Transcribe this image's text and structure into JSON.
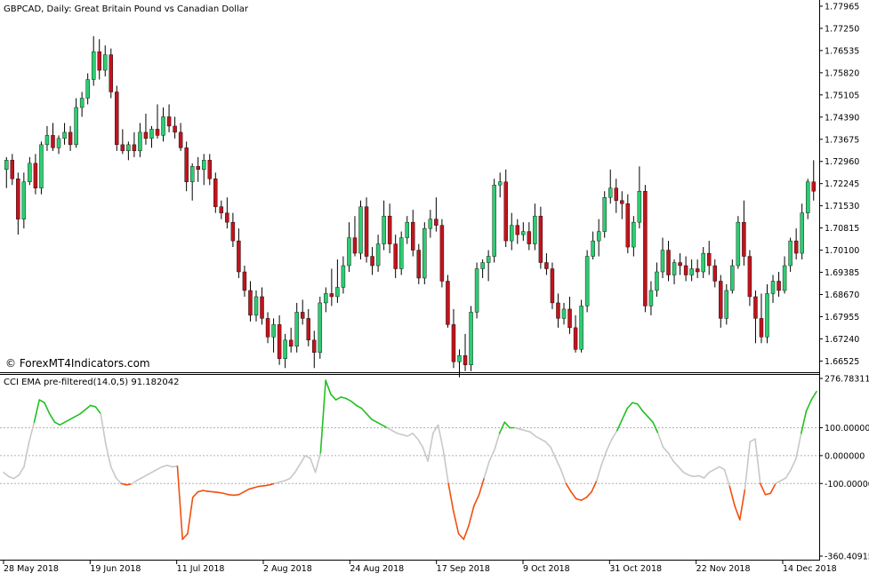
{
  "chart_title": "GBPCAD, Daily:  Great Britain Pound vs Canadian Dollar",
  "watermark": "© ForexMT4Indicators.com",
  "colors": {
    "bull": "#2ecc71",
    "bear": "#c0141c",
    "wick": "#000000",
    "cci_up": "#22c022",
    "cci_down": "#f05010",
    "cci_neutral": "#c8c8c8",
    "grid": "#b0b0b0"
  },
  "price_axis": {
    "ticks": [
      "1.77965",
      "1.77250",
      "1.76535",
      "1.75820",
      "1.75105",
      "1.74390",
      "1.73675",
      "1.72960",
      "1.72245",
      "1.71530",
      "1.70815",
      "1.70100",
      "1.69385",
      "1.68670",
      "1.67955",
      "1.67240",
      "1.66525"
    ]
  },
  "date_axis": {
    "labels": [
      "28 May 2018",
      "19 Jun 2018",
      "11 Jul 2018",
      "2 Aug 2018",
      "24 Aug 2018",
      "17 Sep 2018",
      "9 Oct 2018",
      "31 Oct 2018",
      "22 Nov 2018",
      "14 Dec 2018"
    ]
  },
  "indicator": {
    "label": "CCI EMA pre-filtered(14.0,5) 91.182042",
    "ticks": [
      "276.783113",
      "100.000000",
      "0.000000",
      "-100.000000",
      "-360.409151"
    ]
  },
  "chart_data": [
    {
      "type": "candlestick",
      "title": "GBPCAD, Daily:  Great Britain Pound vs Canadian Dollar",
      "ylim": [
        1.6625,
        1.7805
      ],
      "x_labels": [
        "28 May 2018",
        "19 Jun 2018",
        "11 Jul 2018",
        "2 Aug 2018",
        "24 Aug 2018",
        "17 Sep 2018",
        "9 Oct 2018",
        "31 Oct 2018",
        "22 Nov 2018",
        "14 Dec 2018"
      ],
      "ohlc": [
        [
          1.727,
          1.731,
          1.721,
          1.73
        ],
        [
          1.73,
          1.732,
          1.722,
          1.724
        ],
        [
          1.724,
          1.726,
          1.706,
          1.711
        ],
        [
          1.711,
          1.726,
          1.708,
          1.723
        ],
        [
          1.723,
          1.731,
          1.722,
          1.729
        ],
        [
          1.729,
          1.732,
          1.719,
          1.721
        ],
        [
          1.721,
          1.736,
          1.719,
          1.735
        ],
        [
          1.735,
          1.741,
          1.733,
          1.738
        ],
        [
          1.738,
          1.742,
          1.733,
          1.734
        ],
        [
          1.734,
          1.738,
          1.732,
          1.737
        ],
        [
          1.737,
          1.742,
          1.735,
          1.739
        ],
        [
          1.739,
          1.741,
          1.733,
          1.735
        ],
        [
          1.735,
          1.75,
          1.734,
          1.747
        ],
        [
          1.747,
          1.752,
          1.744,
          1.75
        ],
        [
          1.75,
          1.758,
          1.748,
          1.756
        ],
        [
          1.756,
          1.77,
          1.754,
          1.765
        ],
        [
          1.765,
          1.769,
          1.756,
          1.759
        ],
        [
          1.759,
          1.767,
          1.757,
          1.764
        ],
        [
          1.764,
          1.766,
          1.75,
          1.752
        ],
        [
          1.752,
          1.754,
          1.733,
          1.735
        ],
        [
          1.735,
          1.74,
          1.732,
          1.733
        ],
        [
          1.733,
          1.736,
          1.73,
          1.735
        ],
        [
          1.735,
          1.739,
          1.731,
          1.733
        ],
        [
          1.733,
          1.742,
          1.731,
          1.739
        ],
        [
          1.739,
          1.745,
          1.735,
          1.737
        ],
        [
          1.737,
          1.741,
          1.734,
          1.74
        ],
        [
          1.74,
          1.748,
          1.737,
          1.738
        ],
        [
          1.738,
          1.747,
          1.736,
          1.744
        ],
        [
          1.744,
          1.748,
          1.739,
          1.741
        ],
        [
          1.741,
          1.744,
          1.737,
          1.739
        ],
        [
          1.739,
          1.742,
          1.733,
          1.734
        ],
        [
          1.734,
          1.736,
          1.72,
          1.723
        ],
        [
          1.723,
          1.729,
          1.717,
          1.728
        ],
        [
          1.728,
          1.731,
          1.723,
          1.727
        ],
        [
          1.727,
          1.732,
          1.722,
          1.73
        ],
        [
          1.73,
          1.732,
          1.722,
          1.724
        ],
        [
          1.724,
          1.726,
          1.713,
          1.715
        ],
        [
          1.715,
          1.717,
          1.711,
          1.713
        ],
        [
          1.713,
          1.718,
          1.708,
          1.71
        ],
        [
          1.71,
          1.713,
          1.702,
          1.704
        ],
        [
          1.704,
          1.708,
          1.692,
          1.694
        ],
        [
          1.694,
          1.696,
          1.686,
          1.688
        ],
        [
          1.688,
          1.691,
          1.678,
          1.68
        ],
        [
          1.68,
          1.688,
          1.678,
          1.686
        ],
        [
          1.686,
          1.689,
          1.677,
          1.679
        ],
        [
          1.679,
          1.681,
          1.671,
          1.673
        ],
        [
          1.673,
          1.679,
          1.668,
          1.677
        ],
        [
          1.677,
          1.68,
          1.664,
          1.666
        ],
        [
          1.666,
          1.674,
          1.663,
          1.672
        ],
        [
          1.672,
          1.676,
          1.668,
          1.67
        ],
        [
          1.67,
          1.684,
          1.668,
          1.681
        ],
        [
          1.681,
          1.685,
          1.677,
          1.679
        ],
        [
          1.679,
          1.682,
          1.67,
          1.672
        ],
        [
          1.672,
          1.675,
          1.663,
          1.668
        ],
        [
          1.668,
          1.686,
          1.666,
          1.684
        ],
        [
          1.684,
          1.689,
          1.681,
          1.687
        ],
        [
          1.687,
          1.695,
          1.683,
          1.686
        ],
        [
          1.686,
          1.698,
          1.684,
          1.689
        ],
        [
          1.689,
          1.699,
          1.687,
          1.696
        ],
        [
          1.696,
          1.71,
          1.694,
          1.705
        ],
        [
          1.705,
          1.712,
          1.699,
          1.7
        ],
        [
          1.7,
          1.717,
          1.698,
          1.715
        ],
        [
          1.715,
          1.718,
          1.697,
          1.699
        ],
        [
          1.699,
          1.702,
          1.693,
          1.696
        ],
        [
          1.696,
          1.706,
          1.694,
          1.703
        ],
        [
          1.703,
          1.717,
          1.701,
          1.712
        ],
        [
          1.712,
          1.716,
          1.7,
          1.703
        ],
        [
          1.703,
          1.706,
          1.692,
          1.695
        ],
        [
          1.695,
          1.707,
          1.693,
          1.705
        ],
        [
          1.705,
          1.712,
          1.703,
          1.71
        ],
        [
          1.71,
          1.714,
          1.699,
          1.701
        ],
        [
          1.701,
          1.703,
          1.69,
          1.692
        ],
        [
          1.692,
          1.71,
          1.69,
          1.708
        ],
        [
          1.708,
          1.714,
          1.705,
          1.711
        ],
        [
          1.711,
          1.718,
          1.707,
          1.709
        ],
        [
          1.709,
          1.711,
          1.689,
          1.691
        ],
        [
          1.691,
          1.693,
          1.676,
          1.677
        ],
        [
          1.677,
          1.682,
          1.663,
          1.665
        ],
        [
          1.665,
          1.669,
          1.66,
          1.667
        ],
        [
          1.667,
          1.674,
          1.662,
          1.664
        ],
        [
          1.664,
          1.683,
          1.662,
          1.681
        ],
        [
          1.681,
          1.697,
          1.679,
          1.695
        ],
        [
          1.695,
          1.698,
          1.692,
          1.697
        ],
        [
          1.697,
          1.701,
          1.691,
          1.699
        ],
        [
          1.699,
          1.724,
          1.697,
          1.722
        ],
        [
          1.722,
          1.726,
          1.718,
          1.723
        ],
        [
          1.723,
          1.727,
          1.702,
          1.704
        ],
        [
          1.704,
          1.713,
          1.701,
          1.709
        ],
        [
          1.709,
          1.711,
          1.703,
          1.706
        ],
        [
          1.706,
          1.71,
          1.704,
          1.707
        ],
        [
          1.707,
          1.71,
          1.701,
          1.703
        ],
        [
          1.703,
          1.716,
          1.701,
          1.712
        ],
        [
          1.712,
          1.715,
          1.695,
          1.697
        ],
        [
          1.697,
          1.7,
          1.693,
          1.695
        ],
        [
          1.695,
          1.697,
          1.682,
          1.684
        ],
        [
          1.684,
          1.687,
          1.676,
          1.679
        ],
        [
          1.679,
          1.684,
          1.677,
          1.682
        ],
        [
          1.682,
          1.686,
          1.674,
          1.676
        ],
        [
          1.676,
          1.68,
          1.668,
          1.669
        ],
        [
          1.669,
          1.685,
          1.668,
          1.683
        ],
        [
          1.683,
          1.701,
          1.681,
          1.699
        ],
        [
          1.699,
          1.707,
          1.698,
          1.704
        ],
        [
          1.704,
          1.711,
          1.699,
          1.707
        ],
        [
          1.707,
          1.72,
          1.705,
          1.718
        ],
        [
          1.718,
          1.727,
          1.716,
          1.721
        ],
        [
          1.721,
          1.724,
          1.713,
          1.717
        ],
        [
          1.717,
          1.72,
          1.711,
          1.716
        ],
        [
          1.716,
          1.719,
          1.7,
          1.702
        ],
        [
          1.702,
          1.712,
          1.699,
          1.71
        ],
        [
          1.71,
          1.728,
          1.708,
          1.72
        ],
        [
          1.72,
          1.722,
          1.681,
          1.683
        ],
        [
          1.683,
          1.691,
          1.68,
          1.688
        ],
        [
          1.688,
          1.697,
          1.686,
          1.694
        ],
        [
          1.694,
          1.705,
          1.692,
          1.701
        ],
        [
          1.701,
          1.704,
          1.691,
          1.693
        ],
        [
          1.693,
          1.698,
          1.69,
          1.697
        ],
        [
          1.697,
          1.7,
          1.693,
          1.696
        ],
        [
          1.696,
          1.699,
          1.691,
          1.693
        ],
        [
          1.693,
          1.698,
          1.691,
          1.695
        ],
        [
          1.695,
          1.698,
          1.692,
          1.694
        ],
        [
          1.694,
          1.702,
          1.692,
          1.7
        ],
        [
          1.7,
          1.704,
          1.693,
          1.696
        ],
        [
          1.696,
          1.698,
          1.689,
          1.691
        ],
        [
          1.691,
          1.693,
          1.676,
          1.679
        ],
        [
          1.679,
          1.69,
          1.677,
          1.688
        ],
        [
          1.688,
          1.698,
          1.687,
          1.696
        ],
        [
          1.696,
          1.712,
          1.695,
          1.71
        ],
        [
          1.71,
          1.717,
          1.696,
          1.699
        ],
        [
          1.699,
          1.701,
          1.683,
          1.686
        ],
        [
          1.686,
          1.688,
          1.671,
          1.679
        ],
        [
          1.679,
          1.687,
          1.671,
          1.673
        ],
        [
          1.673,
          1.69,
          1.671,
          1.687
        ],
        [
          1.687,
          1.693,
          1.684,
          1.691
        ],
        [
          1.691,
          1.694,
          1.686,
          1.688
        ],
        [
          1.688,
          1.699,
          1.687,
          1.696
        ],
        [
          1.696,
          1.705,
          1.694,
          1.704
        ],
        [
          1.704,
          1.708,
          1.698,
          1.7
        ],
        [
          1.7,
          1.716,
          1.698,
          1.713
        ],
        [
          1.713,
          1.724,
          1.711,
          1.723
        ],
        [
          1.723,
          1.73,
          1.717,
          1.72
        ]
      ]
    },
    {
      "type": "line",
      "title": "CCI EMA pre-filtered(14.0,5) 91.182042",
      "ylim": [
        -360.409151,
        276.783113
      ],
      "reference_lines": [
        100,
        0,
        -100
      ],
      "color_rule": "green above 100, orange-red below -100, grey between",
      "values": [
        -60,
        -75,
        -82,
        -70,
        -40,
        50,
        120,
        200,
        190,
        150,
        120,
        110,
        120,
        130,
        140,
        150,
        165,
        180,
        175,
        150,
        40,
        -40,
        -80,
        -100,
        -105,
        -102,
        -90,
        -80,
        -70,
        -60,
        -50,
        -40,
        -35,
        -40,
        -38,
        -300,
        -280,
        -150,
        -130,
        -125,
        -128,
        -130,
        -132,
        -135,
        -140,
        -142,
        -140,
        -130,
        -120,
        -115,
        -110,
        -108,
        -105,
        -100,
        -95,
        -90,
        -82,
        -60,
        -30,
        0,
        -10,
        -60,
        10,
        270,
        220,
        200,
        210,
        205,
        195,
        180,
        170,
        150,
        130,
        120,
        110,
        100,
        90,
        80,
        75,
        70,
        80,
        60,
        30,
        -20,
        80,
        110,
        20,
        -100,
        -200,
        -280,
        -300,
        -250,
        -180,
        -140,
        -80,
        -20,
        20,
        80,
        120,
        100,
        100,
        95,
        90,
        85,
        70,
        60,
        50,
        30,
        -10,
        -50,
        -100,
        -130,
        -155,
        -160,
        -150,
        -130,
        -90,
        -30,
        20,
        60,
        90,
        130,
        170,
        190,
        185,
        160,
        140,
        120,
        80,
        30,
        10,
        -20,
        -40,
        -60,
        -70,
        -75,
        -72,
        -80,
        -60,
        -50,
        -40,
        -50,
        -110,
        -180,
        -230,
        -120,
        50,
        60,
        -100,
        -140,
        -135,
        -100,
        -90,
        -80,
        -50,
        -10,
        80,
        160,
        200,
        230
      ]
    }
  ]
}
